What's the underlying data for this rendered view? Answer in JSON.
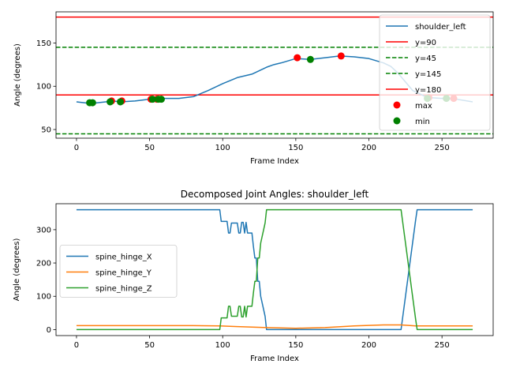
{
  "chart_data": [
    {
      "type": "line",
      "title": "",
      "xlabel": "Frame Index",
      "ylabel": "Angle (degrees)",
      "xlim": [
        -14,
        285
      ],
      "ylim": [
        40,
        186
      ],
      "xticks": [
        0,
        50,
        100,
        150,
        200,
        250
      ],
      "yticks": [
        50,
        100,
        150
      ],
      "grid": false,
      "legend_position": "upper right",
      "series": [
        {
          "name": "shoulder_left",
          "color": "#1f77b4",
          "x": [
            0,
            10,
            20,
            25,
            30,
            40,
            50,
            60,
            70,
            80,
            90,
            100,
            110,
            120,
            125,
            130,
            135,
            140,
            150,
            160,
            170,
            180,
            190,
            200,
            210,
            215,
            220,
            225,
            230,
            240,
            250,
            260,
            271
          ],
          "y": [
            82,
            80,
            82,
            83,
            82,
            83,
            85,
            86,
            86,
            88,
            95,
            103,
            110,
            114,
            118,
            122,
            125,
            127,
            132,
            131,
            133,
            135,
            134,
            132,
            127,
            123,
            115,
            105,
            95,
            87,
            86,
            85,
            82
          ]
        }
      ],
      "hlines": [
        {
          "label": "y=90",
          "y": 90,
          "color": "#ff0000",
          "style": "solid"
        },
        {
          "label": "y=45",
          "y": 45,
          "color": "#008000",
          "style": "dashed"
        },
        {
          "label": "y=145",
          "y": 145,
          "color": "#008000",
          "style": "dashed"
        },
        {
          "label": "y=180",
          "y": 180,
          "color": "#ff0000",
          "style": "solid"
        }
      ],
      "scatter": [
        {
          "label": "max",
          "color": "#ff0000",
          "points": [
            [
              24,
              83
            ],
            [
              31,
              83
            ],
            [
              51,
              85
            ],
            [
              55,
              85
            ],
            [
              151,
              133
            ],
            [
              181,
              135
            ],
            [
              241,
              87
            ],
            [
              258,
              86
            ]
          ]
        },
        {
          "label": "min",
          "color": "#008000",
          "points": [
            [
              9,
              81
            ],
            [
              11,
              81
            ],
            [
              23,
              82
            ],
            [
              30,
              82
            ],
            [
              52,
              85
            ],
            [
              56,
              85
            ],
            [
              58,
              85
            ],
            [
              160,
              131
            ],
            [
              240,
              86
            ],
            [
              253,
              86
            ]
          ]
        }
      ]
    },
    {
      "type": "line",
      "title": "Decomposed Joint Angles: shoulder_left",
      "xlabel": "Frame Index",
      "ylabel": "Angle (degrees)",
      "xlim": [
        -14,
        285
      ],
      "ylim": [
        -18,
        378
      ],
      "xticks": [
        0,
        50,
        100,
        150,
        200,
        250
      ],
      "yticks": [
        0,
        100,
        200,
        300
      ],
      "grid": false,
      "legend_position": "center left",
      "series": [
        {
          "name": "spine_hinge_X",
          "color": "#1f77b4",
          "x": [
            0,
            98,
            99,
            103,
            104,
            105,
            106,
            110,
            111,
            112,
            113,
            114,
            115,
            116,
            117,
            118,
            119,
            120,
            121,
            122,
            123,
            124,
            125,
            126,
            129,
            130,
            222,
            232,
            233,
            271
          ],
          "y": [
            360,
            360,
            325,
            325,
            290,
            290,
            320,
            320,
            290,
            290,
            322,
            322,
            290,
            322,
            290,
            290,
            290,
            290,
            250,
            215,
            215,
            145,
            145,
            100,
            40,
            0,
            0,
            330,
            360,
            360
          ]
        },
        {
          "name": "spine_hinge_Y",
          "color": "#ff7f0e",
          "x": [
            0,
            80,
            98,
            110,
            130,
            150,
            170,
            190,
            210,
            222,
            232,
            271
          ],
          "y": [
            12,
            12,
            11,
            9,
            6,
            4,
            6,
            11,
            14,
            14,
            11,
            11
          ]
        },
        {
          "name": "spine_hinge_Z",
          "color": "#2ca02c",
          "x": [
            0,
            98,
            99,
            103,
            104,
            105,
            106,
            110,
            111,
            112,
            113,
            114,
            115,
            116,
            117,
            118,
            119,
            120,
            121,
            122,
            123,
            124,
            125,
            126,
            129,
            130,
            222,
            232,
            233,
            271
          ],
          "y": [
            0,
            0,
            35,
            35,
            70,
            70,
            40,
            40,
            70,
            70,
            38,
            38,
            70,
            38,
            70,
            70,
            70,
            70,
            110,
            145,
            145,
            215,
            215,
            260,
            320,
            360,
            360,
            30,
            0,
            0
          ]
        }
      ]
    }
  ]
}
